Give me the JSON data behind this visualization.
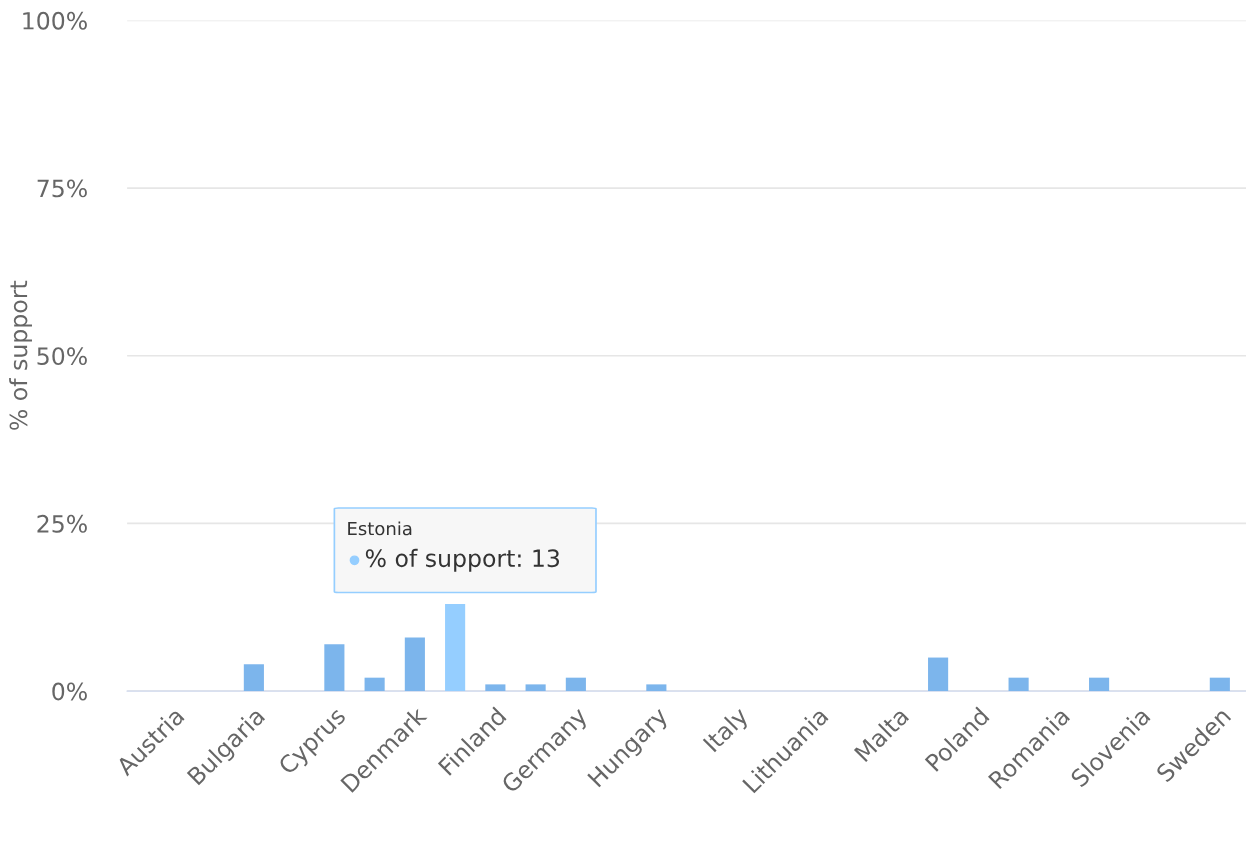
{
  "chart_data": {
    "type": "bar",
    "ylabel": "% of support",
    "categories": [
      "Austria",
      null,
      "Bulgaria",
      null,
      "Cyprus",
      null,
      "Denmark",
      null,
      "Finland",
      null,
      "Germany",
      null,
      "Hungary",
      null,
      "Italy",
      null,
      "Lithuania",
      null,
      "Malta",
      null,
      "Poland",
      null,
      "Romania",
      null,
      "Slovenia",
      null,
      "Sweden"
    ],
    "values": [
      0,
      0,
      4,
      0,
      7,
      2,
      8,
      13,
      1,
      1,
      2,
      0,
      1,
      0,
      0,
      0,
      0,
      0,
      0,
      5,
      0,
      2,
      0,
      2,
      0,
      0,
      2
    ],
    "colors": [
      "#7cb5ec",
      "#7cb5ec",
      "#7cb5ec",
      "#7cb5ec",
      "#7cb5ec",
      "#7cb5ec",
      "#7cb5ec",
      "#95ceff",
      "#7cb5ec",
      "#7cb5ec",
      "#7cb5ec",
      "#7cb5ec",
      "#7cb5ec",
      "#7cb5ec",
      "#7cb5ec",
      "#7cb5ec",
      "#7cb5ec",
      "#7cb5ec",
      "#7cb5ec",
      "#7cb5ec",
      "#7cb5ec",
      "#7cb5ec",
      "#7cb5ec",
      "#7cb5ec",
      "#7cb5ec",
      "#7cb5ec",
      "#7cb5ec"
    ],
    "ylim": [
      0,
      100
    ],
    "yticks": [
      {
        "value": 0,
        "label": "0%"
      },
      {
        "value": 25,
        "label": "25%"
      },
      {
        "value": 50,
        "label": "50%"
      },
      {
        "value": 75,
        "label": "75%"
      },
      {
        "value": 100,
        "label": "100%"
      }
    ],
    "grid": "y",
    "annotations": [
      "Estonia",
      "% of support: 13"
    ]
  }
}
